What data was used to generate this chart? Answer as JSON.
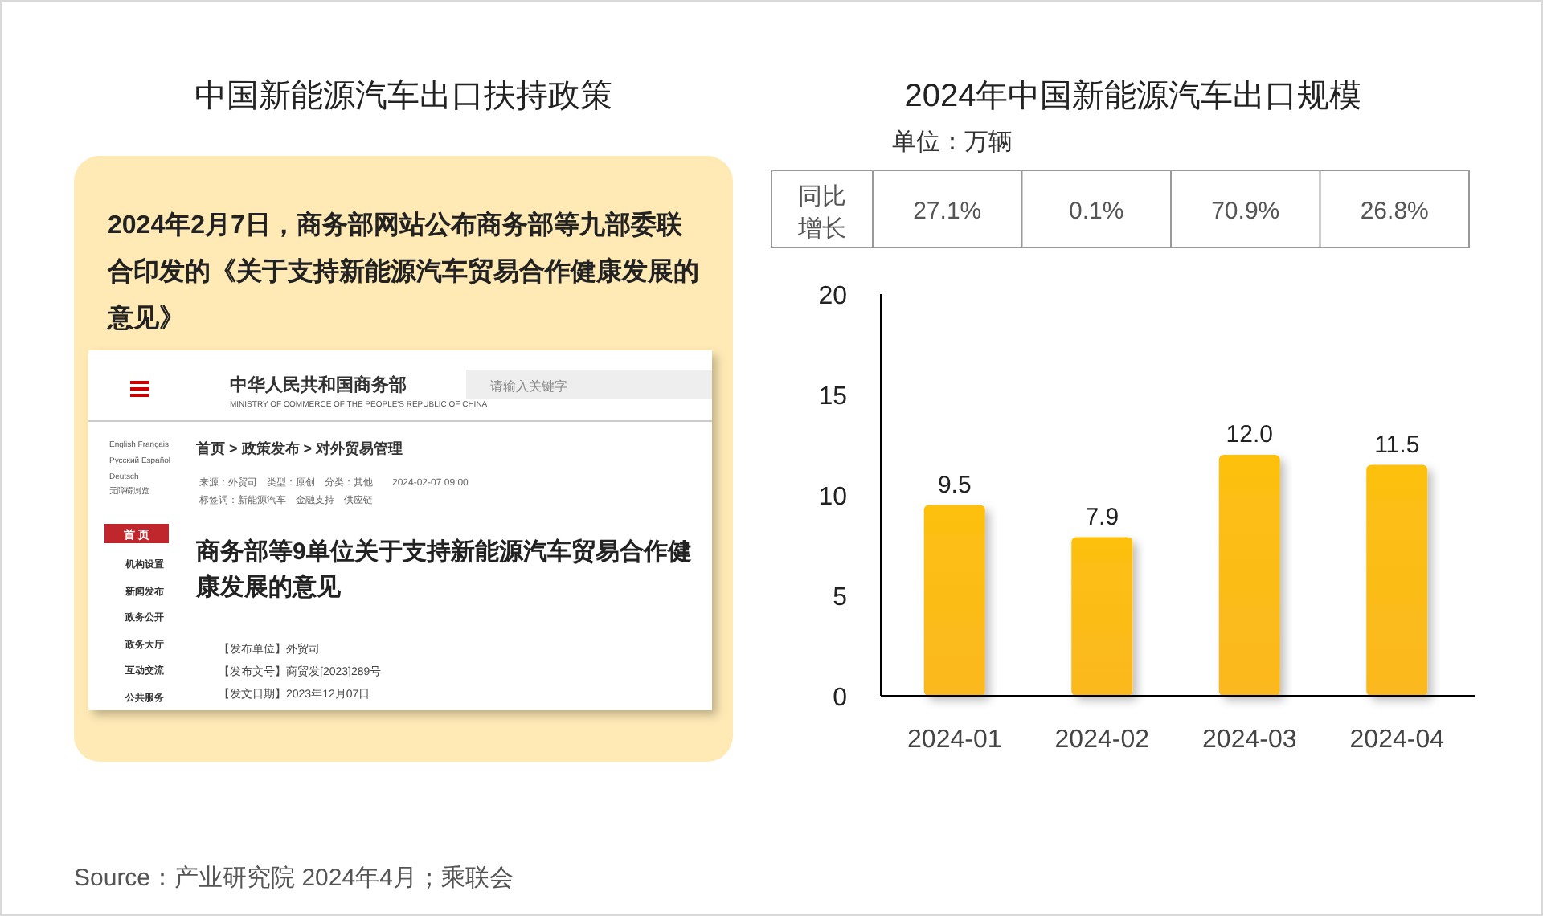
{
  "chart_data": [
    {
      "type": "other",
      "title": "中国新能源汽车出口扶持政策",
      "annotations": [
        "2024年2月7日，商务部网站公布商务部等九部委联合印发的《关于支持新能源汽车贸易合作健康发展的意见》",
        "中华人民共和国商务部",
        "MINISTRY OF COMMERCE OF THE PEOPLE'S REPUBLIC OF CHINA",
        "请输入关键字",
        "English Français",
        "Русский Español",
        "Deutsch",
        "无障碍浏览",
        "首页 > 政策发布 > 对外贸易管理",
        "来源：外贸司　类型：原创　分类：其他　　2024-02-07 09:00",
        "标签词：新能源汽车　金融支持　供应链",
        "首 页",
        "机构设置",
        "新闻发布",
        "政务公开",
        "政务大厅",
        "互动交流",
        "公共服务",
        "商务部等9单位关于支持新能源汽车贸易合作健康发展的意见",
        "【发布单位】外贸司",
        "【发布文号】商贸发[2023]289号",
        "【发文日期】2023年12月07日"
      ]
    },
    {
      "type": "bar",
      "title": "2024年中国新能源汽车出口规模",
      "ylabel": "单位：万辆",
      "categories": [
        "2024-01",
        "2024-02",
        "2024-03",
        "2024-04"
      ],
      "values": [
        9.5,
        7.9,
        12.0,
        11.5
      ],
      "color": "#fdc00f",
      "value_labels": [
        "9.5",
        "7.9",
        "12.0",
        "11.5"
      ],
      "ylim": [
        0,
        20
      ],
      "yticks": [
        0,
        5,
        10,
        15,
        20
      ],
      "grid": false,
      "annotations": [
        "同比增长",
        "27.1%",
        "0.1%",
        "70.9%",
        "26.8%",
        "Source：产业研究院 2024年4月；乘联会"
      ]
    }
  ]
}
